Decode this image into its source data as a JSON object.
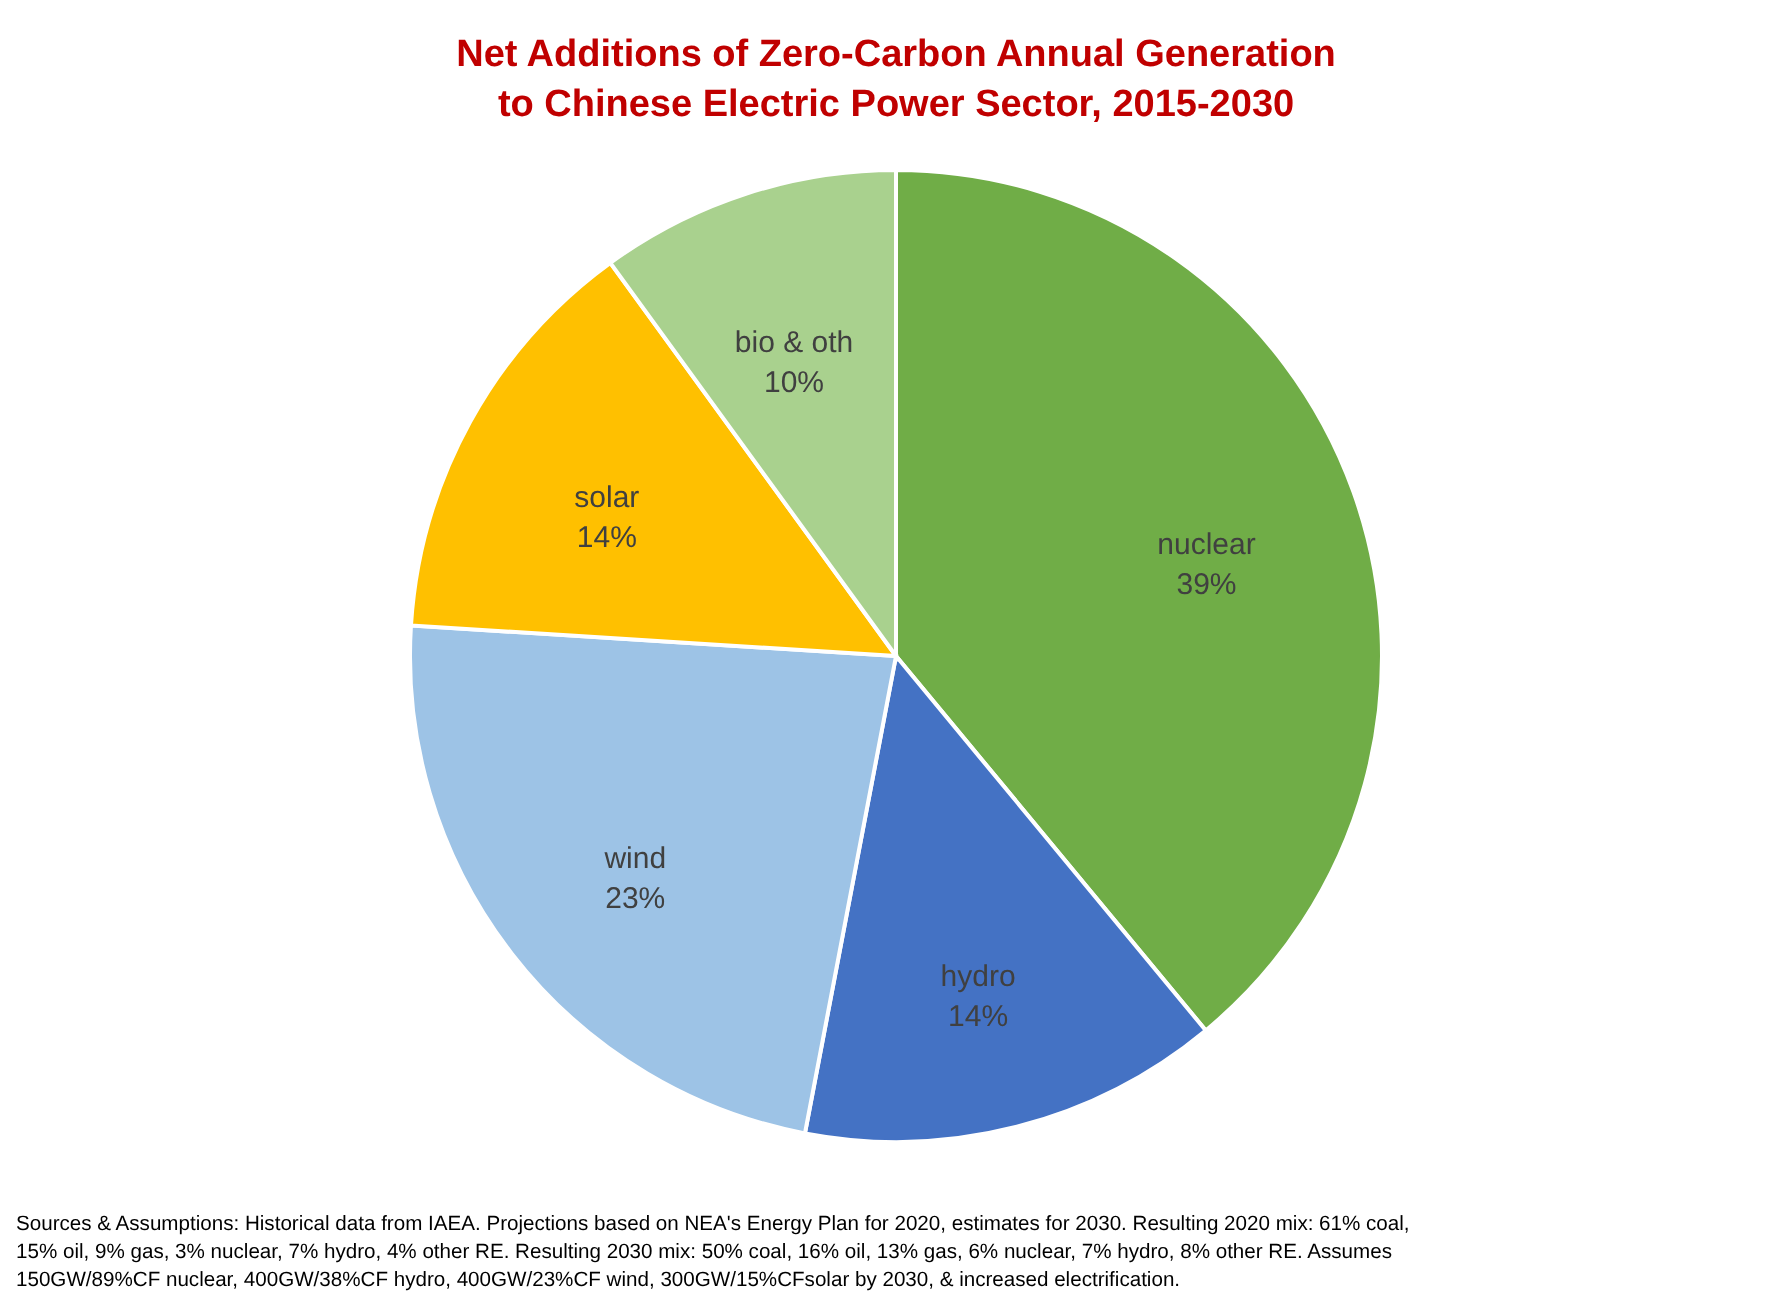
{
  "chart_data": {
    "type": "pie",
    "title": "Net Additions of Zero-Carbon Annual Generation\nto Chinese Electric Power Sector, 2015-2030",
    "categories": [
      "nuclear",
      "hydro",
      "wind",
      "solar",
      "bio & oth"
    ],
    "values": [
      39,
      14,
      23,
      14,
      10
    ],
    "colors": [
      "#70ad47",
      "#4472c4",
      "#9dc3e6",
      "#ffc000",
      "#a9d18e"
    ],
    "value_labels": [
      "39%",
      "14%",
      "23%",
      "14%",
      "10%"
    ],
    "legend": false,
    "annotations": [
      "Sources & Assumptions: Historical data from IAEA. Projections based on NEA's Energy Plan for 2020, estimates for 2030. Resulting 2020 mix: 61% coal, 15% oil, 9% gas, 3% nuclear, 7% hydro, 4% other RE. Resulting 2030 mix: 50% coal, 16% oil, 13% gas, 6% nuclear, 7% hydro, 8% other RE. Assumes 150GW/89%CF nuclear, 400GW/38%CF hydro, 400GW/23%CF wind, 300GW/15%CFsolar by 2030, & increased electrification."
    ]
  }
}
